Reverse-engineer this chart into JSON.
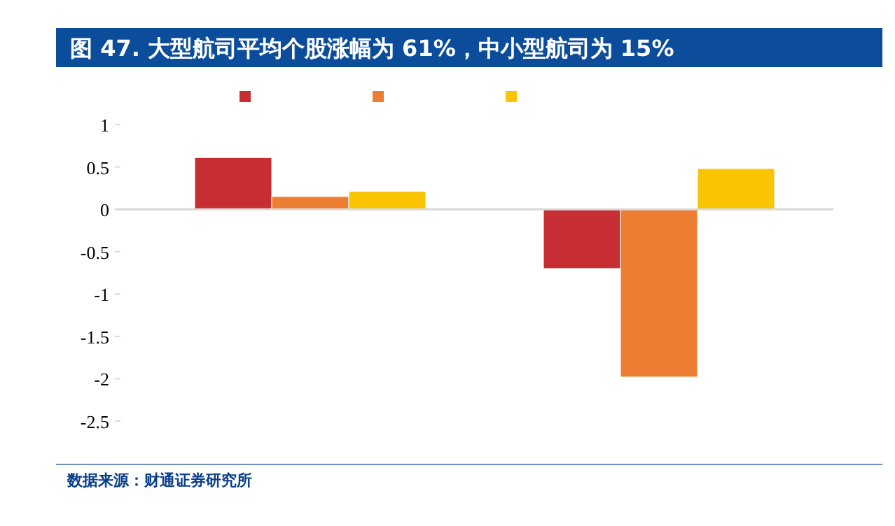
{
  "chart_data": {
    "type": "bar",
    "title": "图 47. 大型航司平均个股涨幅为 61%，中小型航司为 15%",
    "annotations": [
      "数据来源：财通证券研究所"
    ],
    "categories": [
      null,
      null
    ],
    "series": [
      {
        "color": "#c62e33",
        "values": [
          0.61,
          -0.7
        ]
      },
      {
        "color": "#ed7d31",
        "values": [
          0.15,
          -1.98
        ]
      },
      {
        "color": "#fac500",
        "values": [
          0.21,
          0.48
        ]
      }
    ],
    "ylim": [
      -2.5,
      1
    ],
    "yticks": [
      -2.5,
      -2,
      -1.5,
      -1,
      -0.5,
      0,
      0.5,
      1
    ]
  }
}
